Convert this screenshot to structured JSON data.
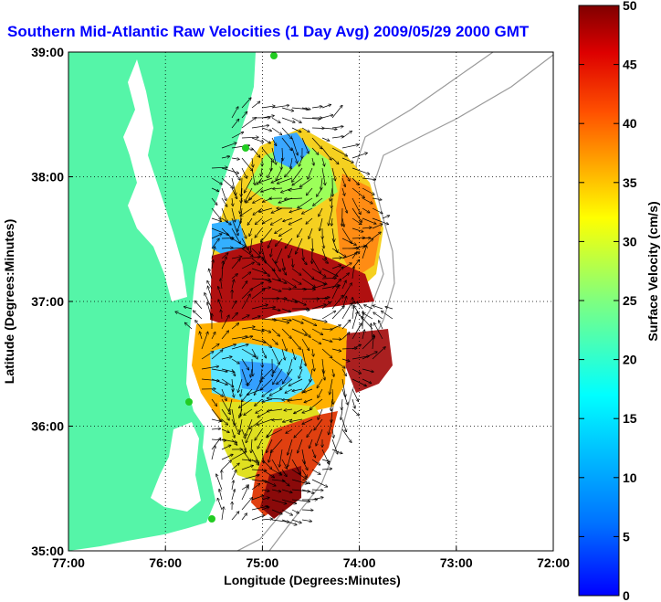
{
  "title": "Southern Mid-Atlantic Raw Velocities (1 Day Avg) 2009/05/29 2000 GMT",
  "map": {
    "xlabel": "Longitude (Degrees:Minutes)",
    "ylabel": "Latitude (Degrees:Minutes)",
    "x_ticks": [
      "77:00",
      "76:00",
      "75:00",
      "74:00",
      "73:00",
      "72:00"
    ],
    "y_ticks": [
      "39:00",
      "38:00",
      "37:00",
      "36:00",
      "35:00"
    ],
    "lon_range": [
      -77,
      -72
    ],
    "lat_range": [
      35,
      39
    ],
    "grid": "dotted",
    "colors": {
      "land": "#55f5a8",
      "water": "#ffffff",
      "bathymetry": "#9a9a9a",
      "stations": "#22cc22"
    }
  },
  "colorbar": {
    "label": "Surface Velocity (cm/s)",
    "ticks": [
      "0",
      "5",
      "10",
      "15",
      "20",
      "25",
      "30",
      "35",
      "40",
      "45",
      "50"
    ],
    "range": [
      0,
      50
    ],
    "colormap": "jet"
  }
}
